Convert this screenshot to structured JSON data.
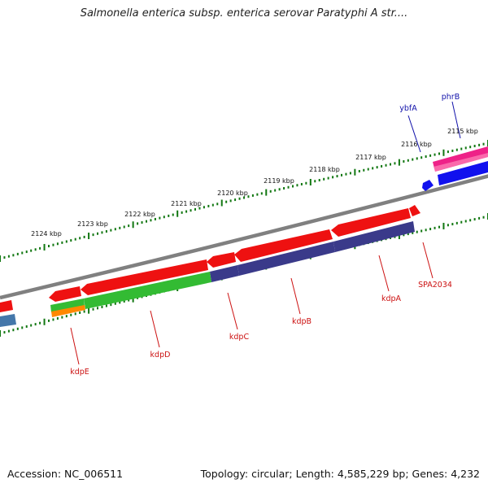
{
  "title": "Salmonella enterica subsp. enterica serovar Paratyphi A str....",
  "footer": {
    "accession": "Accession: NC_006511",
    "summary": "Topology: circular; Length: 4,585,229 bp; Genes: 4,232"
  },
  "ticks": [
    "2115 kbp",
    "2116 kbp",
    "2117 kbp",
    "2118 kbp",
    "2119 kbp",
    "2120 kbp",
    "2121 kbp",
    "2122 kbp",
    "2123 kbp",
    "2124 kbp"
  ],
  "genes_outer": [
    "phrB",
    "ybfA"
  ],
  "genes_inner": [
    "SPA2034",
    "kdpA",
    "kdpB",
    "kdpC",
    "kdpD",
    "kdpE"
  ],
  "colors": {
    "backbone": "#808080",
    "tick": "#117711",
    "gene_red": "#ee1111",
    "gene_pink": "#ee2288",
    "gene_blue": "#1111ee",
    "gene_green": "#33bb33",
    "gene_navy": "#3a3a8a",
    "gene_orange": "#ff8800",
    "gene_steel": "#4477aa",
    "label_outer": "#1111aa",
    "label_inner": "#cc1111"
  }
}
